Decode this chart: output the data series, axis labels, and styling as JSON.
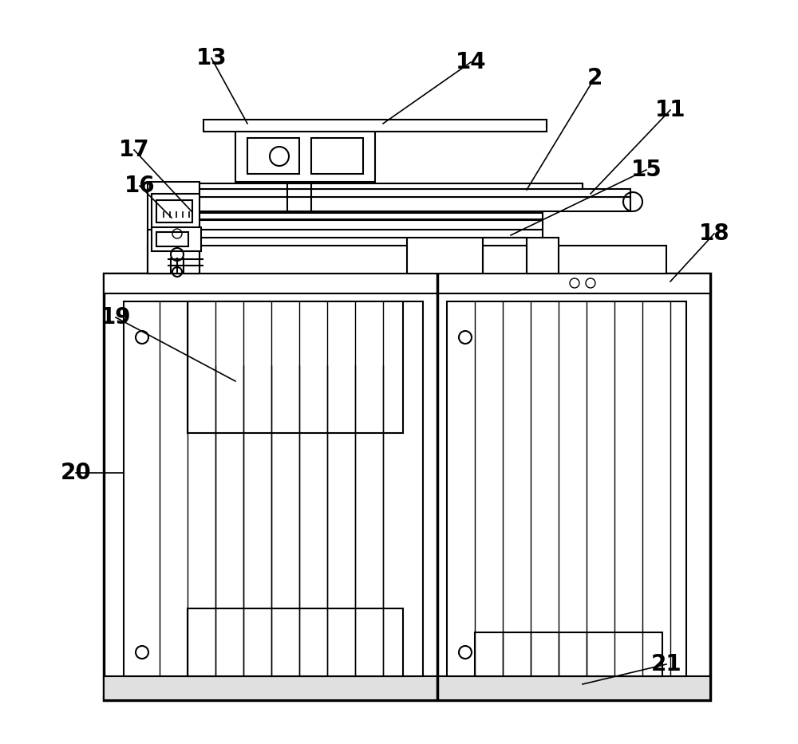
{
  "bg_color": "#ffffff",
  "line_color": "#000000",
  "lw": 1.5,
  "lw_thick": 2.5,
  "lw_thin": 1.0,
  "label_fontsize": 20,
  "figsize": [
    10.0,
    9.33
  ],
  "dpi": 100
}
